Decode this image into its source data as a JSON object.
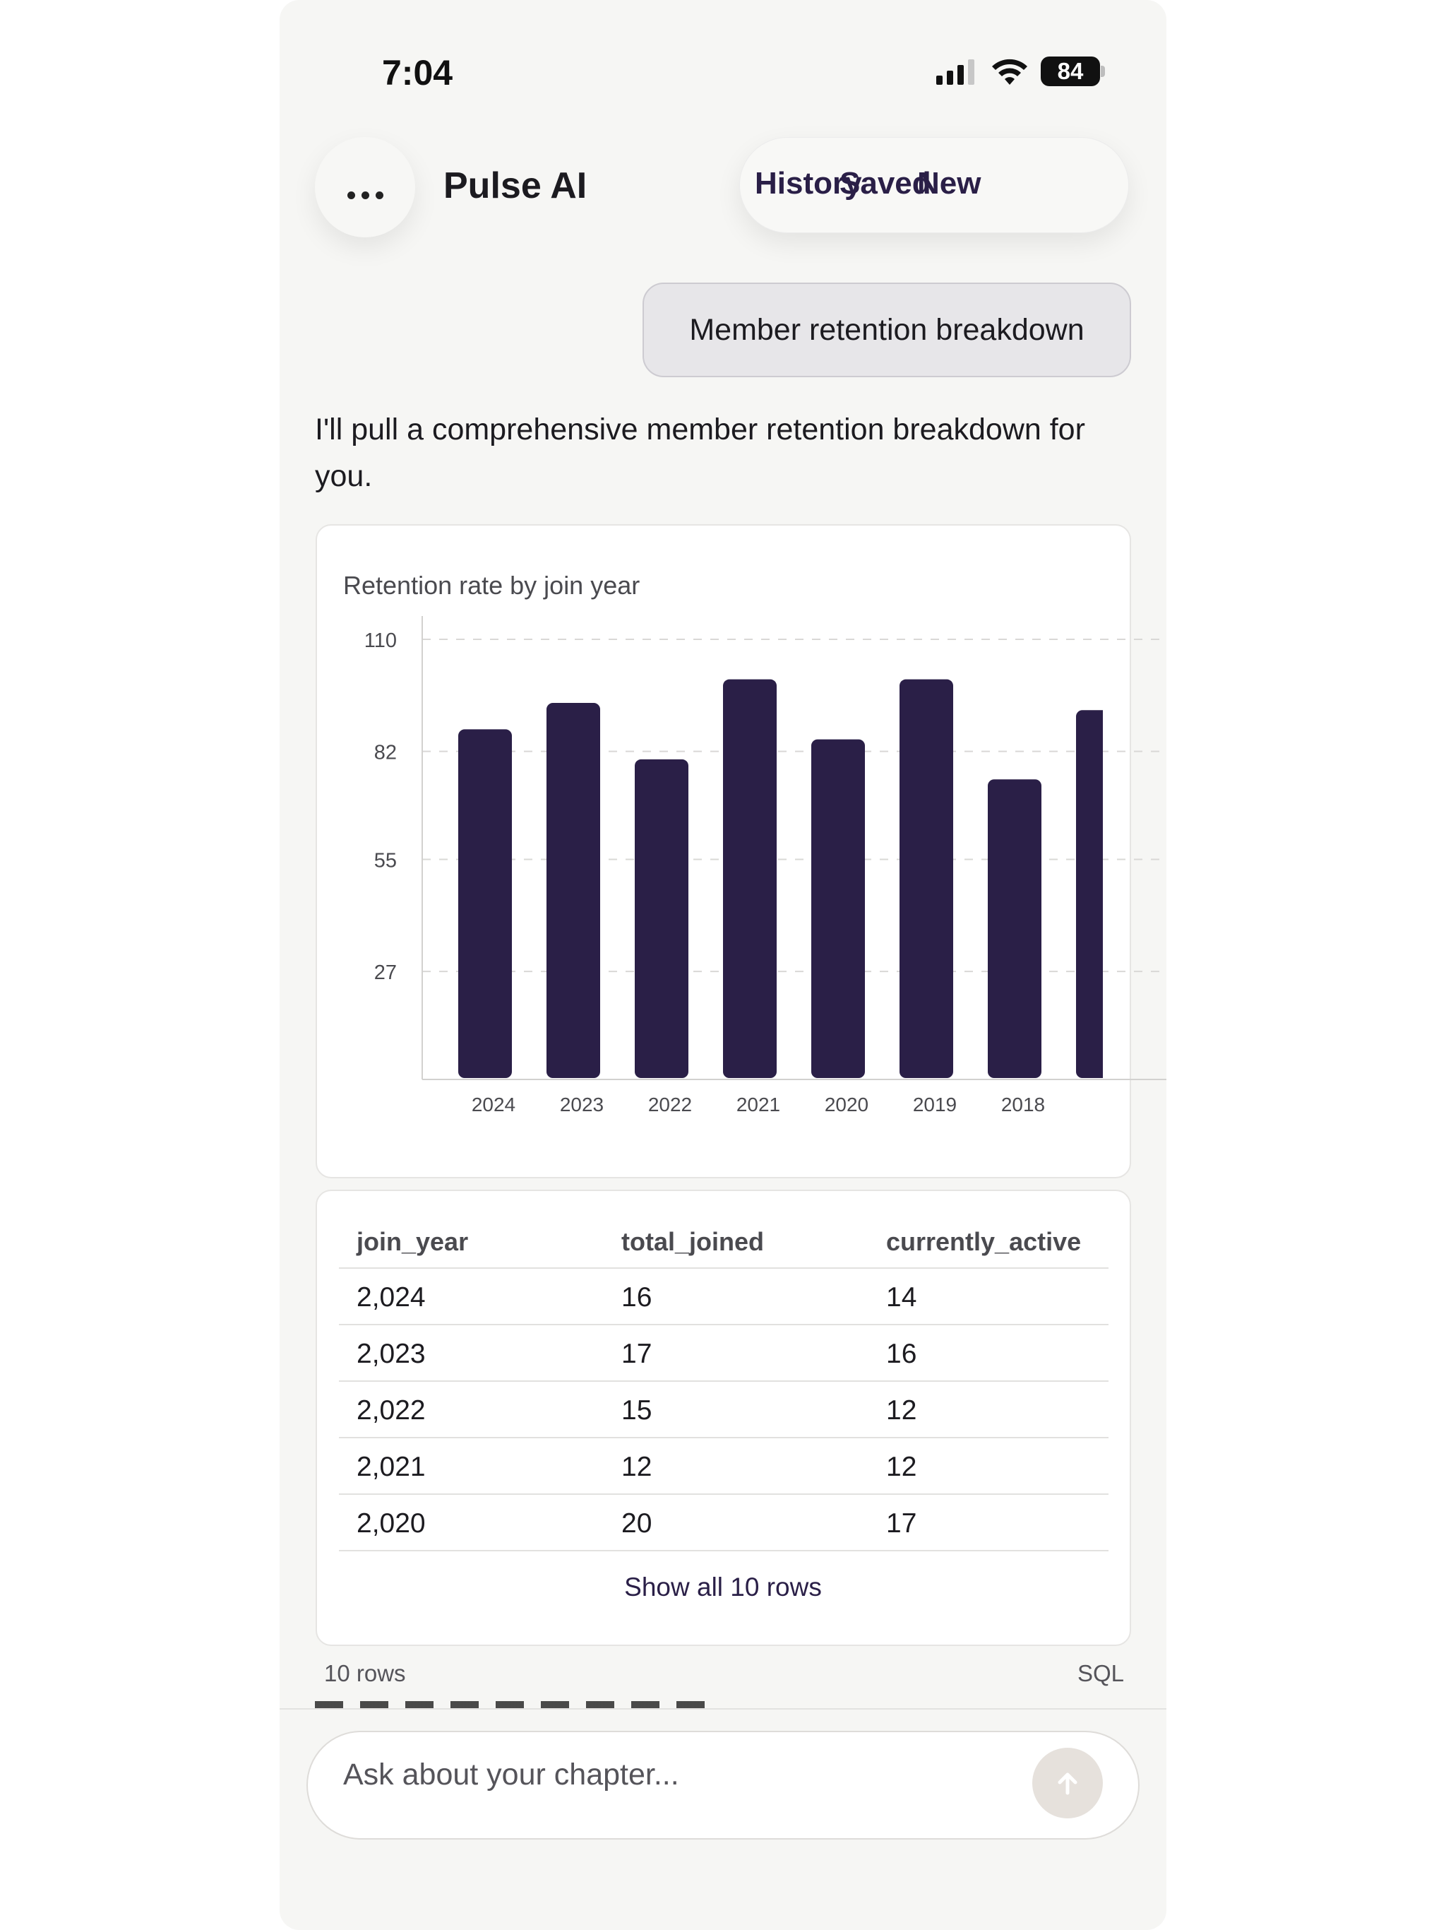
{
  "status_bar": {
    "time": "7:04",
    "battery": "84",
    "icons": [
      "cellular-signal-icon",
      "wifi-icon",
      "battery-icon"
    ]
  },
  "header": {
    "menu_icon": "ellipsis-icon",
    "title": "Pulse AI",
    "nav": [
      "History",
      "Saved",
      "New"
    ]
  },
  "conversation": {
    "user_message": "Member retention breakdown",
    "assistant_message": "I'll pull a comprehensive member retention breakdown for you."
  },
  "chart_data": {
    "type": "bar",
    "title": "Retention rate by join year",
    "categories": [
      "2024",
      "2023",
      "2022",
      "2021",
      "2020",
      "2019",
      "2018",
      ""
    ],
    "values": [
      87.5,
      94.1,
      80.0,
      100.0,
      85.0,
      100.0,
      75.0,
      92.3
    ],
    "y_ticks": [
      "110",
      "82",
      "55",
      "27"
    ],
    "ylim": [
      0,
      110
    ],
    "grid": true,
    "bar_color": "#2a1f47"
  },
  "table": {
    "columns": [
      "join_year",
      "total_joined",
      "currently_active"
    ],
    "rows": [
      [
        "2,024",
        "16",
        "14"
      ],
      [
        "2,023",
        "17",
        "16"
      ],
      [
        "2,022",
        "15",
        "12"
      ],
      [
        "2,021",
        "12",
        "12"
      ],
      [
        "2,020",
        "20",
        "17"
      ]
    ],
    "show_all_label": "Show all 10 rows"
  },
  "result_footer": {
    "row_count": "10 rows",
    "sql_label": "SQL"
  },
  "composer": {
    "placeholder": "Ask about your chapter...",
    "send_icon": "arrow-up-icon"
  },
  "colors": {
    "accent": "#2a1f47",
    "background": "#f6f6f4",
    "send_button": "#e6e1dc"
  }
}
